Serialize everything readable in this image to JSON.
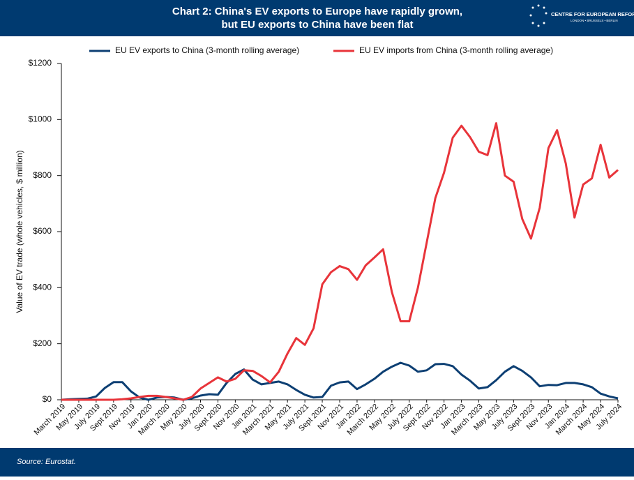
{
  "chart_data": {
    "type": "line",
    "title_lines": [
      "Chart 2: China's EV exports to Europe have rapidly grown,",
      "but EU exports to China have been flat"
    ],
    "logo": {
      "name": "CENTRE FOR EUROPEAN REFORM",
      "cities": "LONDON • BRUSSELS • BERLIN"
    },
    "ylabel": "Value of EV trade (whole vehicles, $ million)",
    "source": "Source: Eurostat.",
    "categories": [
      "March 2019",
      null,
      "May 2019",
      null,
      "July 2019",
      null,
      "Sept 2019",
      null,
      "Nov 2019",
      null,
      "Jan 2020",
      null,
      "March 2020",
      null,
      "May 2020",
      null,
      "July 2020",
      null,
      "Sept 2020",
      null,
      "Nov 2020",
      null,
      "Jan 2021",
      null,
      "March 2021",
      null,
      "May 2021",
      null,
      "July 2021",
      null,
      "Sept 2021",
      null,
      "Nov 2021",
      null,
      "Jan 2022",
      null,
      "March 2022",
      null,
      "May 2022",
      null,
      "July 2022",
      null,
      "Sept 2022",
      null,
      "Nov 2022",
      null,
      "Jan 2023",
      null,
      "March 2023",
      null,
      "May 2023",
      null,
      "July 2023",
      null,
      "Sept 2023",
      null,
      "Nov 2023",
      null,
      "Jan 2024",
      null,
      "March 2024",
      null,
      "May 2024",
      null,
      "July 2024"
    ],
    "series": [
      {
        "name": "EU EV exports to China (3-month rolling average)",
        "color": "#0d3f73",
        "values": [
          0,
          2,
          3,
          4,
          12,
          42,
          63,
          63,
          30,
          8,
          0,
          8,
          10,
          8,
          0,
          5,
          15,
          20,
          18,
          60,
          92,
          108,
          72,
          55,
          60,
          65,
          55,
          35,
          18,
          8,
          10,
          50,
          62,
          65,
          38,
          55,
          75,
          100,
          118,
          132,
          122,
          100,
          105,
          127,
          128,
          120,
          90,
          68,
          40,
          45,
          70,
          100,
          120,
          103,
          80,
          48,
          53,
          52,
          60,
          60,
          55,
          45,
          22,
          12,
          5
        ]
      },
      {
        "name": "EU EV imports from China (3-month rolling average)",
        "color": "#e8343a",
        "values": [
          0,
          0,
          0,
          0,
          0,
          0,
          0,
          2,
          5,
          10,
          14,
          14,
          10,
          5,
          0,
          10,
          40,
          60,
          80,
          65,
          75,
          105,
          103,
          85,
          62,
          100,
          165,
          220,
          196,
          255,
          412,
          455,
          477,
          466,
          428,
          480,
          508,
          537,
          385,
          280,
          280,
          400,
          560,
          720,
          810,
          935,
          978,
          937,
          885,
          873,
          987,
          800,
          778,
          645,
          575,
          685,
          898,
          962,
          843,
          650,
          768,
          790,
          910,
          793,
          820
        ]
      }
    ],
    "ylim": [
      0,
      1200
    ],
    "yticks": [
      {
        "value": 0,
        "label": "$0"
      },
      {
        "value": 200,
        "label": "$200"
      },
      {
        "value": 400,
        "label": "$400"
      },
      {
        "value": 600,
        "label": "$600"
      },
      {
        "value": 800,
        "label": "$800"
      },
      {
        "value": 1000,
        "label": "$1000"
      },
      {
        "value": 1200,
        "label": "$1200"
      }
    ],
    "legend": "top"
  }
}
